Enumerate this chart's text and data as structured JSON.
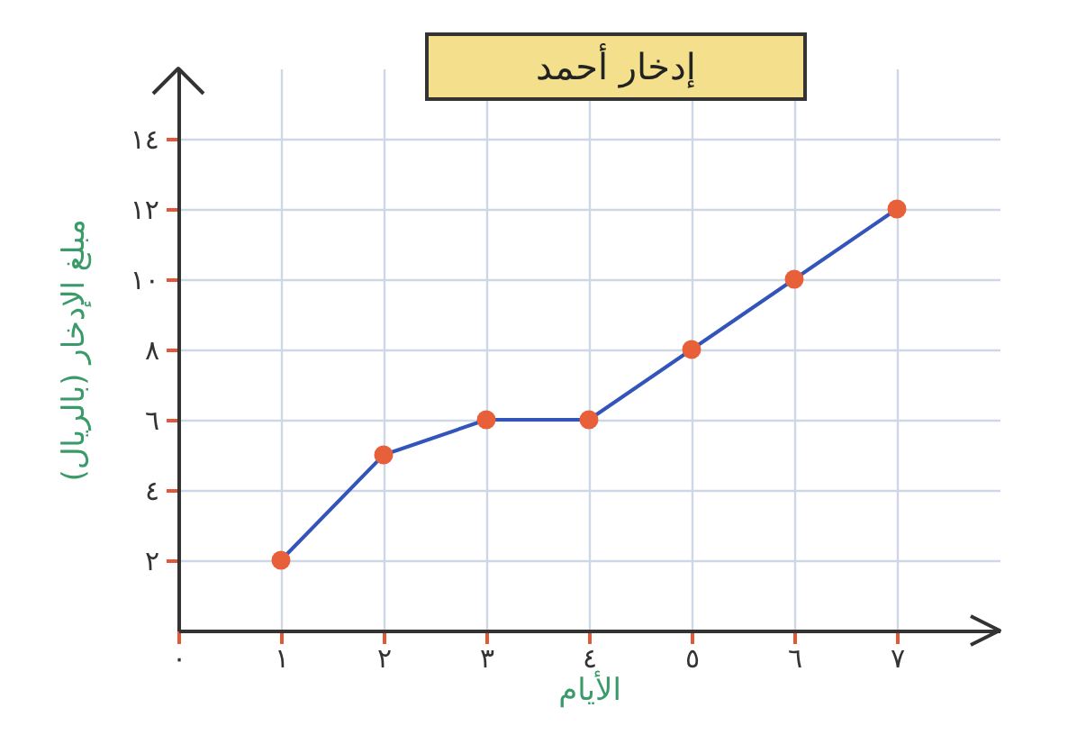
{
  "chart_data": {
    "type": "line",
    "title": "إدخار أحمد",
    "xlabel": "الأيام",
    "ylabel": "مبلغ الإدخار (بالريال)",
    "x": [
      1,
      2,
      3,
      4,
      5,
      6,
      7
    ],
    "series": [
      {
        "color": "#3355bb",
        "colors": [
          "#e8603a",
          "#e8603a",
          "#e8603a",
          "#e8603a",
          "#e8603a",
          "#e8603a",
          "#e8603a"
        ],
        "values": [
          2,
          5,
          6,
          6,
          8,
          10,
          12
        ]
      }
    ],
    "xlim": [
      0,
      8
    ],
    "ylim": [
      0,
      16
    ],
    "xticks": [
      {
        "value": 0,
        "label": "٠"
      },
      {
        "value": 1,
        "label": "١"
      },
      {
        "value": 2,
        "label": "٢"
      },
      {
        "value": 3,
        "label": "٣"
      },
      {
        "value": 4,
        "label": "٤"
      },
      {
        "value": 5,
        "label": "٥"
      },
      {
        "value": 6,
        "label": "٦"
      },
      {
        "value": 7,
        "label": "٧"
      }
    ],
    "yticks": [
      {
        "value": 2,
        "label": "٢"
      },
      {
        "value": 4,
        "label": "٤"
      },
      {
        "value": 6,
        "label": "٦"
      },
      {
        "value": 8,
        "label": "٨"
      },
      {
        "value": 10,
        "label": "١٠"
      },
      {
        "value": 12,
        "label": "١٢"
      },
      {
        "value": 14,
        "label": "١٤"
      }
    ],
    "grid": true,
    "marker": "circle"
  }
}
